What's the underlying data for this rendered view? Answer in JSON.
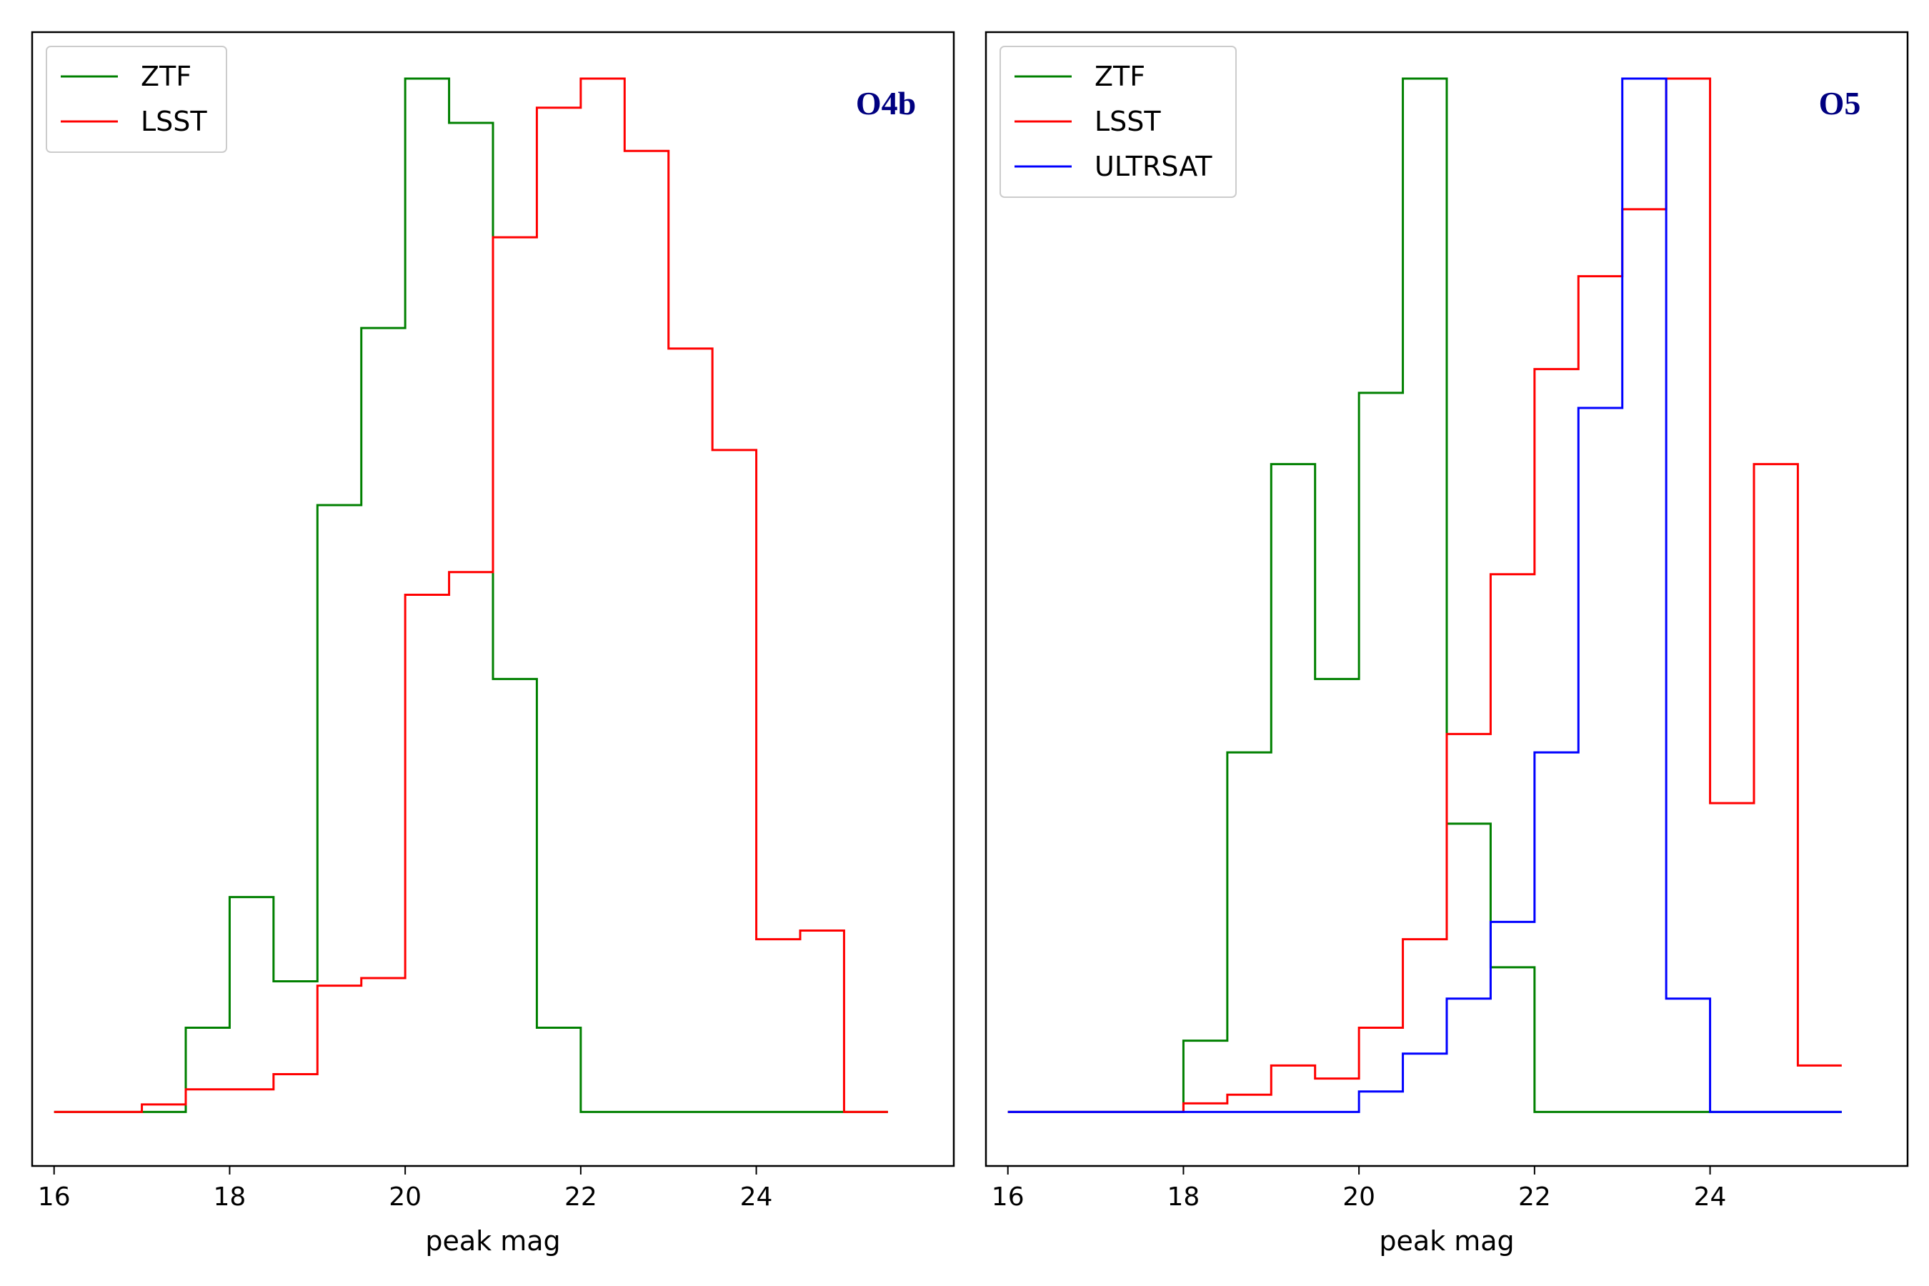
{
  "colors": {
    "ZTF": "#008000",
    "LSST": "#ff0000",
    "ULTRSAT": "#0000ff",
    "run_label": "#000080"
  },
  "chart_data": [
    {
      "type": "histogram-step",
      "panel_label": "O4b",
      "xlabel": "peak mag",
      "ylabel": "",
      "xlim": [
        15.75,
        26.25
      ],
      "ylim": [
        -0.05,
        1.0
      ],
      "xticks": [
        "16",
        "18",
        "20",
        "22",
        "24"
      ],
      "legend": {
        "placement": "top-left",
        "entries": [
          "ZTF",
          "LSST"
        ]
      },
      "bin_edges": [
        16,
        16.5,
        17,
        17.5,
        18,
        18.5,
        19,
        19.5,
        20,
        20.5,
        21,
        21.5,
        22,
        22.5,
        23,
        23.5,
        24,
        24.5,
        25,
        25.5
      ],
      "series": [
        {
          "name": "ZTF",
          "color": "#008000",
          "values": [
            0,
            0,
            0,
            0.078,
            0.199,
            0.121,
            0.562,
            0.726,
            0.957,
            0.916,
            0.401,
            0.078,
            0,
            0,
            0,
            0,
            0,
            0,
            0
          ]
        },
        {
          "name": "LSST",
          "color": "#ff0000",
          "values": [
            0,
            0,
            0.007,
            0.021,
            0.021,
            0.035,
            0.117,
            0.124,
            0.479,
            0.5,
            0.81,
            0.93,
            0.957,
            0.89,
            0.707,
            0.613,
            0.16,
            0.168,
            0
          ]
        }
      ]
    },
    {
      "type": "histogram-step",
      "panel_label": "O5",
      "xlabel": "peak mag",
      "ylabel": "",
      "xlim": [
        15.75,
        26.25
      ],
      "ylim": [
        -0.05,
        1.0
      ],
      "xticks": [
        "16",
        "18",
        "20",
        "22",
        "24"
      ],
      "legend": {
        "placement": "top-left",
        "entries": [
          "ZTF",
          "LSST",
          "ULTRSAT"
        ]
      },
      "bin_edges": [
        16,
        16.5,
        17,
        17.5,
        18,
        18.5,
        19,
        19.5,
        20,
        20.5,
        21,
        21.5,
        22,
        22.5,
        23,
        23.5,
        24,
        24.5,
        25,
        25.5
      ],
      "series": [
        {
          "name": "ZTF",
          "color": "#008000",
          "values": [
            0,
            0,
            0,
            0,
            0.066,
            0.333,
            0.6,
            0.401,
            0.666,
            0.957,
            0.267,
            0.134,
            0,
            0,
            0,
            0,
            0,
            0,
            0
          ]
        },
        {
          "name": "LSST",
          "color": "#ff0000",
          "values": [
            0,
            0,
            0,
            0,
            0.008,
            0.016,
            0.043,
            0.031,
            0.078,
            0.16,
            0.35,
            0.498,
            0.688,
            0.774,
            0.836,
            0.957,
            0.286,
            0.6,
            0.043
          ]
        },
        {
          "name": "ULTRSAT",
          "color": "#0000ff",
          "values": [
            0,
            0,
            0,
            0,
            0,
            0,
            0,
            0,
            0.019,
            0.054,
            0.105,
            0.176,
            0.333,
            0.652,
            0.957,
            0.105,
            0,
            0,
            0
          ]
        }
      ]
    }
  ]
}
